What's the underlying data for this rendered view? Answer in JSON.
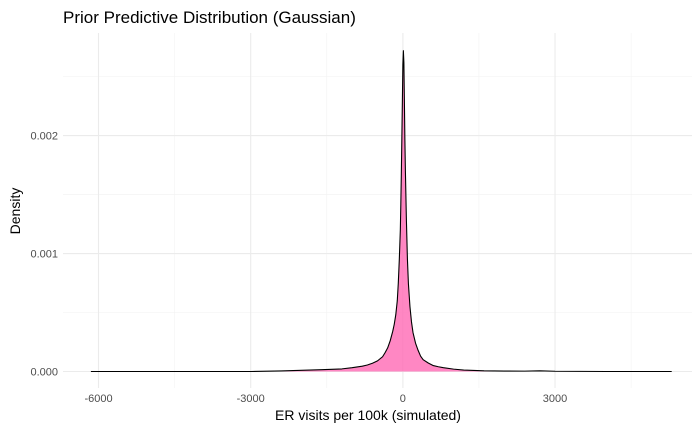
{
  "chart_data": {
    "type": "area",
    "title": "Prior Predictive Distribution (Gaussian)",
    "xlabel": "ER visits per 100k (simulated)",
    "ylabel": "Density",
    "xlim": [
      -6700,
      5700
    ],
    "ylim": [
      -0.00014,
      0.00287
    ],
    "x_ticks": [
      -6000,
      -3000,
      0,
      3000
    ],
    "x_tick_labels": [
      "-6000",
      "-3000",
      "0",
      "3000"
    ],
    "y_ticks": [
      0.0,
      0.001,
      0.002
    ],
    "y_tick_labels": [
      "0.000",
      "0.001",
      "0.002"
    ],
    "grid": true,
    "legend": "none",
    "fill_color": "#ff69b4",
    "line_color": "#000000",
    "series": [
      {
        "x": [
          -6150,
          -4500,
          -3000,
          -2400,
          -2000,
          -1600,
          -1200,
          -1000,
          -800,
          -700,
          -600,
          -500,
          -400,
          -350,
          -300,
          -250,
          -200,
          -170,
          -140,
          -110,
          -90,
          -70,
          -50,
          -40,
          -30,
          -20,
          -10,
          0,
          10,
          20,
          30,
          40,
          50,
          70,
          90,
          110,
          140,
          170,
          200,
          250,
          300,
          350,
          400,
          500,
          600,
          700,
          800,
          1000,
          1200,
          1600,
          2000,
          2400,
          2700,
          3000,
          4000,
          5300
        ],
        "y": [
          0.0,
          0.0,
          0.0,
          5e-06,
          1e-05,
          1.5e-05,
          2.2e-05,
          3.2e-05,
          4.5e-05,
          5.5e-05,
          7e-05,
          9e-05,
          0.000125,
          0.00016,
          0.0002,
          0.00026,
          0.00034,
          0.0004,
          0.00048,
          0.0006,
          0.00075,
          0.00095,
          0.0012,
          0.00142,
          0.00168,
          0.00198,
          0.00228,
          0.0026,
          0.00272,
          0.00262,
          0.0023,
          0.00196,
          0.0017,
          0.00128,
          0.00095,
          0.00074,
          0.00055,
          0.00042,
          0.00033,
          0.00024,
          0.00018,
          0.00013,
          0.0001,
          7.2e-05,
          5e-05,
          4e-05,
          3.2e-05,
          2e-05,
          1.2e-05,
          6e-06,
          4e-06,
          3e-06,
          6e-06,
          2e-06,
          0.0,
          0.0
        ]
      }
    ]
  }
}
